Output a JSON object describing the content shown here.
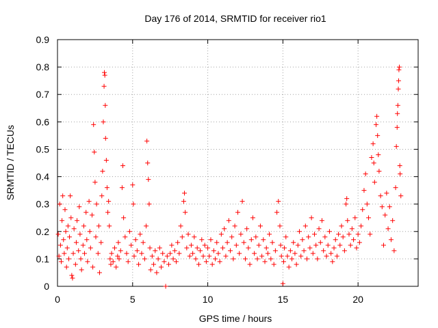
{
  "chart_data": {
    "type": "scatter",
    "title": "Day 176 of 2014, SRMTID for receiver rio1",
    "xlabel": "GPS time / hours",
    "ylabel": "SRMTID / TECUs",
    "xlim": [
      0,
      24
    ],
    "ylim": [
      0,
      0.9
    ],
    "xticks": [
      0,
      5,
      10,
      15,
      20
    ],
    "xtick_labels": [
      "0",
      "5",
      "10",
      "15",
      "20"
    ],
    "yticks": [
      0,
      0.1,
      0.2,
      0.3,
      0.4,
      0.5,
      0.6,
      0.7,
      0.8,
      0.9
    ],
    "ytick_labels": [
      "0",
      "0.1",
      "0.2",
      "0.3",
      "0.4",
      "0.5",
      "0.6",
      "0.7",
      "0.8",
      "0.9"
    ],
    "grid": true,
    "marker": "+",
    "color": "#ff0000",
    "series": [
      {
        "name": "SRMTID",
        "points": [
          [
            0.05,
            0.19
          ],
          [
            0.1,
            0.11
          ],
          [
            0.15,
            0.3
          ],
          [
            0.2,
            0.15
          ],
          [
            0.25,
            0.09
          ],
          [
            0.3,
            0.24
          ],
          [
            0.35,
            0.33
          ],
          [
            0.4,
            0.17
          ],
          [
            0.45,
            0.12
          ],
          [
            0.5,
            0.28
          ],
          [
            0.55,
            0.2
          ],
          [
            0.6,
            0.07
          ],
          [
            0.65,
            0.14
          ],
          [
            0.7,
            0.22
          ],
          [
            0.75,
            0.1
          ],
          [
            0.8,
            0.18
          ],
          [
            0.85,
            0.33
          ],
          [
            0.9,
            0.25
          ],
          [
            0.95,
            0.04
          ],
          [
            1.0,
            0.03
          ],
          [
            1.05,
            0.12
          ],
          [
            1.1,
            0.21
          ],
          [
            1.2,
            0.08
          ],
          [
            1.25,
            0.16
          ],
          [
            1.3,
            0.24
          ],
          [
            1.4,
            0.13
          ],
          [
            1.45,
            0.29
          ],
          [
            1.5,
            0.19
          ],
          [
            1.55,
            0.1
          ],
          [
            1.6,
            0.06
          ],
          [
            1.7,
            0.15
          ],
          [
            1.75,
            0.22
          ],
          [
            1.8,
            0.12
          ],
          [
            1.9,
            0.27
          ],
          [
            1.95,
            0.17
          ],
          [
            2.0,
            0.09
          ],
          [
            2.1,
            0.31
          ],
          [
            2.15,
            0.2
          ],
          [
            2.2,
            0.14
          ],
          [
            2.3,
            0.26
          ],
          [
            2.35,
            0.07
          ],
          [
            2.4,
            0.59
          ],
          [
            2.45,
            0.49
          ],
          [
            2.5,
            0.38
          ],
          [
            2.55,
            0.18
          ],
          [
            2.6,
            0.3
          ],
          [
            2.7,
            0.12
          ],
          [
            2.75,
            0.22
          ],
          [
            2.8,
            0.05
          ],
          [
            2.9,
            0.16
          ],
          [
            2.95,
            0.33
          ],
          [
            3.0,
            0.42
          ],
          [
            3.05,
            0.6
          ],
          [
            3.1,
            0.73
          ],
          [
            3.12,
            0.78
          ],
          [
            3.15,
            0.77
          ],
          [
            3.18,
            0.66
          ],
          [
            3.2,
            0.54
          ],
          [
            3.25,
            0.46
          ],
          [
            3.3,
            0.36
          ],
          [
            3.35,
            0.27
          ],
          [
            3.4,
            0.31
          ],
          [
            3.45,
            0.22
          ],
          [
            3.5,
            0.1
          ],
          [
            3.55,
            0.08
          ],
          [
            3.6,
            0.12
          ],
          [
            3.7,
            0.09
          ],
          [
            3.8,
            0.14
          ],
          [
            3.9,
            0.07
          ],
          [
            4.0,
            0.11
          ],
          [
            4.05,
            0.16
          ],
          [
            4.1,
            0.1
          ],
          [
            4.2,
            0.13
          ],
          [
            4.3,
            0.36
          ],
          [
            4.35,
            0.44
          ],
          [
            4.4,
            0.25
          ],
          [
            4.5,
            0.18
          ],
          [
            4.6,
            0.12
          ],
          [
            4.7,
            0.09
          ],
          [
            4.8,
            0.2
          ],
          [
            4.9,
            0.15
          ],
          [
            5.0,
            0.37
          ],
          [
            5.05,
            0.3
          ],
          [
            5.1,
            0.11
          ],
          [
            5.2,
            0.17
          ],
          [
            5.3,
            0.13
          ],
          [
            5.4,
            0.08
          ],
          [
            5.5,
            0.19
          ],
          [
            5.6,
            0.12
          ],
          [
            5.7,
            0.16
          ],
          [
            5.8,
            0.1
          ],
          [
            5.9,
            0.22
          ],
          [
            5.95,
            0.53
          ],
          [
            6.0,
            0.45
          ],
          [
            6.05,
            0.39
          ],
          [
            6.1,
            0.3
          ],
          [
            6.15,
            0.14
          ],
          [
            6.2,
            0.06
          ],
          [
            6.3,
            0.11
          ],
          [
            6.4,
            0.08
          ],
          [
            6.5,
            0.13
          ],
          [
            6.6,
            0.05
          ],
          [
            6.7,
            0.1
          ],
          [
            6.8,
            0.14
          ],
          [
            6.9,
            0.07
          ],
          [
            7.0,
            0.12
          ],
          [
            7.1,
            0.09
          ],
          [
            7.2,
            0.0
          ],
          [
            7.3,
            0.11
          ],
          [
            7.4,
            0.08
          ],
          [
            7.5,
            0.12
          ],
          [
            7.6,
            0.15
          ],
          [
            7.7,
            0.1
          ],
          [
            7.8,
            0.13
          ],
          [
            7.9,
            0.09
          ],
          [
            8.0,
            0.16
          ],
          [
            8.1,
            0.12
          ],
          [
            8.2,
            0.22
          ],
          [
            8.3,
            0.18
          ],
          [
            8.4,
            0.31
          ],
          [
            8.45,
            0.34
          ],
          [
            8.5,
            0.27
          ],
          [
            8.6,
            0.14
          ],
          [
            8.7,
            0.19
          ],
          [
            8.8,
            0.11
          ],
          [
            8.9,
            0.15
          ],
          [
            9.0,
            0.12
          ],
          [
            9.1,
            0.18
          ],
          [
            9.2,
            0.1
          ],
          [
            9.3,
            0.14
          ],
          [
            9.4,
            0.08
          ],
          [
            9.5,
            0.13
          ],
          [
            9.6,
            0.17
          ],
          [
            9.7,
            0.11
          ],
          [
            9.8,
            0.15
          ],
          [
            9.9,
            0.09
          ],
          [
            10.0,
            0.14
          ],
          [
            10.1,
            0.11
          ],
          [
            10.2,
            0.17
          ],
          [
            10.3,
            0.08
          ],
          [
            10.4,
            0.13
          ],
          [
            10.5,
            0.1
          ],
          [
            10.6,
            0.16
          ],
          [
            10.7,
            0.12
          ],
          [
            10.8,
            0.09
          ],
          [
            10.9,
            0.19
          ],
          [
            11.0,
            0.14
          ],
          [
            11.1,
            0.21
          ],
          [
            11.2,
            0.11
          ],
          [
            11.3,
            0.16
          ],
          [
            11.4,
            0.24
          ],
          [
            11.5,
            0.13
          ],
          [
            11.6,
            0.18
          ],
          [
            11.7,
            0.1
          ],
          [
            11.8,
            0.22
          ],
          [
            11.9,
            0.15
          ],
          [
            12.0,
            0.27
          ],
          [
            12.1,
            0.12
          ],
          [
            12.2,
            0.19
          ],
          [
            12.3,
            0.31
          ],
          [
            12.4,
            0.16
          ],
          [
            12.5,
            0.1
          ],
          [
            12.6,
            0.21
          ],
          [
            12.7,
            0.14
          ],
          [
            12.8,
            0.08
          ],
          [
            12.9,
            0.17
          ],
          [
            13.0,
            0.25
          ],
          [
            13.1,
            0.12
          ],
          [
            13.2,
            0.18
          ],
          [
            13.3,
            0.1
          ],
          [
            13.4,
            0.15
          ],
          [
            13.5,
            0.22
          ],
          [
            13.6,
            0.11
          ],
          [
            13.7,
            0.17
          ],
          [
            13.8,
            0.09
          ],
          [
            13.9,
            0.14
          ],
          [
            14.0,
            0.12
          ],
          [
            14.1,
            0.19
          ],
          [
            14.2,
            0.1
          ],
          [
            14.3,
            0.16
          ],
          [
            14.4,
            0.08
          ],
          [
            14.5,
            0.13
          ],
          [
            14.6,
            0.27
          ],
          [
            14.7,
            0.31
          ],
          [
            14.8,
            0.22
          ],
          [
            14.85,
            0.15
          ],
          [
            14.9,
            0.11
          ],
          [
            15.0,
            0.01
          ],
          [
            15.05,
            0.09
          ],
          [
            15.1,
            0.14
          ],
          [
            15.2,
            0.18
          ],
          [
            15.3,
            0.11
          ],
          [
            15.4,
            0.07
          ],
          [
            15.5,
            0.13
          ],
          [
            15.6,
            0.1
          ],
          [
            15.7,
            0.16
          ],
          [
            15.8,
            0.12
          ],
          [
            15.9,
            0.08
          ],
          [
            16.0,
            0.15
          ],
          [
            16.1,
            0.2
          ],
          [
            16.2,
            0.11
          ],
          [
            16.3,
            0.17
          ],
          [
            16.4,
            0.13
          ],
          [
            16.5,
            0.22
          ],
          [
            16.6,
            0.1
          ],
          [
            16.7,
            0.18
          ],
          [
            16.8,
            0.14
          ],
          [
            16.9,
            0.25
          ],
          [
            17.0,
            0.12
          ],
          [
            17.1,
            0.19
          ],
          [
            17.2,
            0.15
          ],
          [
            17.3,
            0.1
          ],
          [
            17.4,
            0.21
          ],
          [
            17.5,
            0.16
          ],
          [
            17.6,
            0.24
          ],
          [
            17.7,
            0.13
          ],
          [
            17.8,
            0.18
          ],
          [
            17.9,
            0.11
          ],
          [
            18.0,
            0.15
          ],
          [
            18.1,
            0.2
          ],
          [
            18.2,
            0.12
          ],
          [
            18.3,
            0.09
          ],
          [
            18.4,
            0.14
          ],
          [
            18.5,
            0.17
          ],
          [
            18.6,
            0.11
          ],
          [
            18.7,
            0.19
          ],
          [
            18.8,
            0.15
          ],
          [
            18.9,
            0.22
          ],
          [
            19.0,
            0.18
          ],
          [
            19.1,
            0.13
          ],
          [
            19.2,
            0.3
          ],
          [
            19.25,
            0.32
          ],
          [
            19.3,
            0.24
          ],
          [
            19.4,
            0.19
          ],
          [
            19.5,
            0.15
          ],
          [
            19.6,
            0.21
          ],
          [
            19.7,
            0.17
          ],
          [
            19.8,
            0.25
          ],
          [
            19.9,
            0.14
          ],
          [
            20.0,
            0.19
          ],
          [
            20.1,
            0.16
          ],
          [
            20.2,
            0.22
          ],
          [
            20.3,
            0.28
          ],
          [
            20.4,
            0.35
          ],
          [
            20.5,
            0.41
          ],
          [
            20.6,
            0.3
          ],
          [
            20.7,
            0.25
          ],
          [
            20.8,
            0.19
          ],
          [
            20.9,
            0.47
          ],
          [
            21.0,
            0.52
          ],
          [
            21.05,
            0.45
          ],
          [
            21.1,
            0.38
          ],
          [
            21.2,
            0.59
          ],
          [
            21.25,
            0.62
          ],
          [
            21.3,
            0.55
          ],
          [
            21.35,
            0.48
          ],
          [
            21.4,
            0.42
          ],
          [
            21.5,
            0.33
          ],
          [
            21.6,
            0.29
          ],
          [
            21.7,
            0.15
          ],
          [
            21.8,
            0.26
          ],
          [
            21.9,
            0.34
          ],
          [
            22.0,
            0.21
          ],
          [
            22.1,
            0.29
          ],
          [
            22.2,
            0.17
          ],
          [
            22.3,
            0.24
          ],
          [
            22.4,
            0.13
          ],
          [
            22.5,
            0.36
          ],
          [
            22.55,
            0.51
          ],
          [
            22.6,
            0.58
          ],
          [
            22.62,
            0.63
          ],
          [
            22.65,
            0.66
          ],
          [
            22.68,
            0.72
          ],
          [
            22.7,
            0.75
          ],
          [
            22.72,
            0.79
          ],
          [
            22.75,
            0.8
          ],
          [
            22.78,
            0.44
          ],
          [
            22.8,
            0.41
          ],
          [
            22.85,
            0.33
          ]
        ]
      }
    ]
  }
}
